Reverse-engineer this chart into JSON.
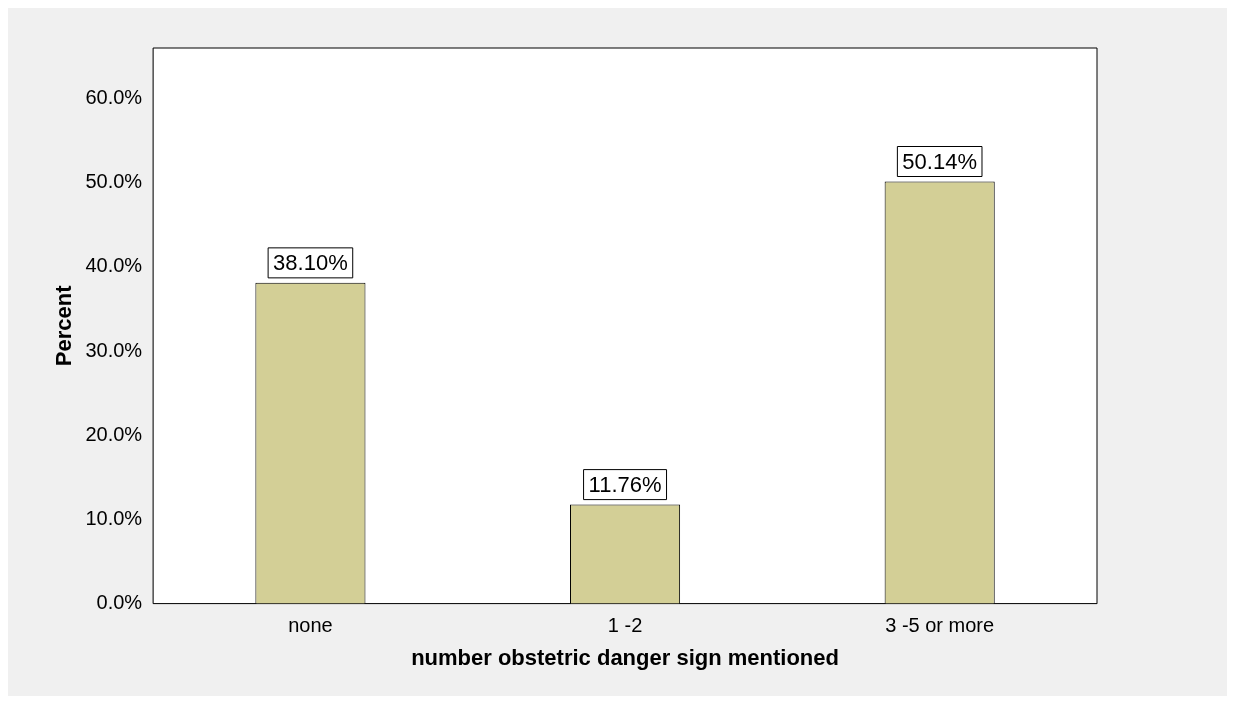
{
  "chart_data": {
    "type": "bar",
    "xlabel": "number obstetric danger sign mentioned",
    "ylabel": "Percent",
    "categories": [
      "none",
      "1 -2",
      "3 -5 or more"
    ],
    "values": [
      38.1,
      11.76,
      50.14
    ],
    "value_labels": [
      "38.10%",
      "11.76%",
      "50.14%"
    ],
    "color": "#d3cf96",
    "ylim": [
      0,
      66
    ],
    "yticks": [
      {
        "value": 0,
        "label": "0.0%"
      },
      {
        "value": 10,
        "label": "10.0%"
      },
      {
        "value": 20,
        "label": "20.0%"
      },
      {
        "value": 30,
        "label": "30.0%"
      },
      {
        "value": 40,
        "label": "40.0%"
      },
      {
        "value": 50,
        "label": "50.0%"
      },
      {
        "value": 60,
        "label": "60.0%"
      }
    ],
    "grid": false,
    "legend": false
  }
}
